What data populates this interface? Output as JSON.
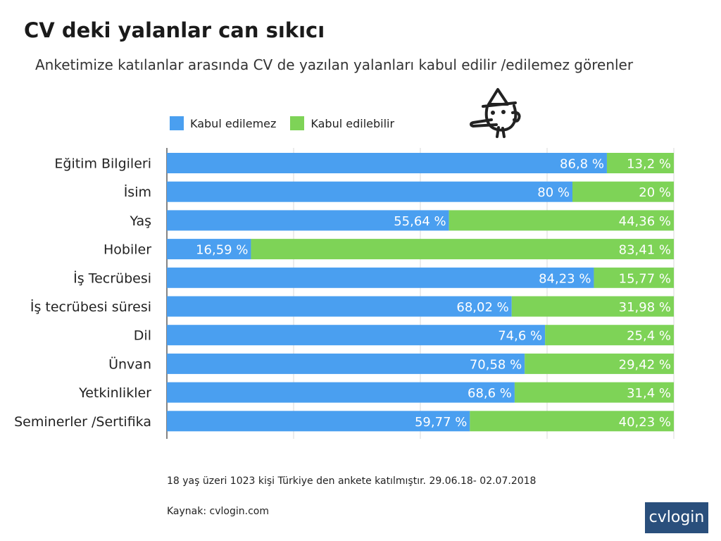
{
  "header": {
    "title": "CV deki yalanlar can sıkıcı",
    "subtitle": "Anketimize katılanlar arasında CV de yazılan yalanları kabul edilir /edilemez görenler"
  },
  "legend": {
    "items": [
      {
        "label": "Kabul edilemez",
        "color": "#4a9ff0"
      },
      {
        "label": "Kabul edilebilir",
        "color": "#7ed357"
      }
    ]
  },
  "mascot": {
    "icon": "pinocchio-icon"
  },
  "chart_data": {
    "type": "bar",
    "orientation": "horizontal",
    "stacked": true,
    "categories": [
      "Eğitim Bilgileri",
      "İsim",
      "Yaş",
      "Hobiler",
      "İş Tecrübesi",
      "İş tecrübesi süresi",
      "Dil",
      "Ünvan",
      "Yetkinlikler",
      "Seminerler /Sertifika"
    ],
    "series": [
      {
        "name": "Kabul edilemez",
        "color": "#4a9ff0",
        "values": [
          86.8,
          80,
          55.64,
          16.59,
          84.23,
          68.02,
          74.6,
          70.58,
          68.6,
          59.77
        ],
        "labels": [
          "86,8 %",
          "80 %",
          "55,64 %",
          "16,59 %",
          "84,23 %",
          "68,02 %",
          "74,6 %",
          "70,58 %",
          "68,6 %",
          "59,77 %"
        ]
      },
      {
        "name": "Kabul edilebilir",
        "color": "#7ed357",
        "values": [
          13.2,
          20,
          44.36,
          83.41,
          15.77,
          31.98,
          25.4,
          29.42,
          31.4,
          40.23
        ],
        "labels": [
          "13,2 %",
          "20 %",
          "44,36 %",
          "83,41 %",
          "15,77 %",
          "31,98 %",
          "25,4 %",
          "29,42 %",
          "31,4 %",
          "40,23 %"
        ]
      }
    ],
    "xlim": [
      0,
      100
    ],
    "grid": true,
    "legend_position": "top-left"
  },
  "footer": {
    "note": "18 yaş üzeri 1023 kişi Türkiye den ankete katılmıştır.  29.06.18- 02.07.2018",
    "source": "Kaynak: cvlogin.com",
    "brand": "cvlogin"
  }
}
